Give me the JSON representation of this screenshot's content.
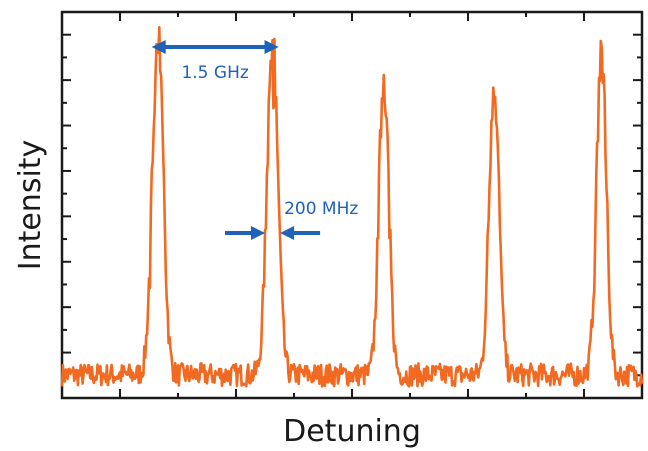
{
  "colors": {
    "trace": "#f26a21",
    "annotation": "#1e63b8",
    "axis": "#1a1a1a"
  },
  "chart_data": {
    "type": "line",
    "title": "",
    "xlabel": "Detuning",
    "ylabel": "Intensity",
    "xlim": [
      0,
      10
    ],
    "ylim": [
      0,
      1
    ],
    "grid": false,
    "legend": "none",
    "series": [
      {
        "peaks": [
          {
            "center": 1.65,
            "height": 0.94,
            "fwhm": 0.22
          },
          {
            "center": 3.63,
            "height": 0.94,
            "fwhm": 0.22
          },
          {
            "center": 5.55,
            "height": 0.84,
            "fwhm": 0.2
          },
          {
            "center": 7.45,
            "height": 0.83,
            "fwhm": 0.2
          },
          {
            "center": 9.3,
            "height": 0.89,
            "fwhm": 0.2
          }
        ],
        "baseline": 0.06,
        "noise": 0.03
      }
    ],
    "annotations": [
      {
        "text": "1.5 GHz",
        "type": "double-arrow",
        "from": 1.65,
        "to": 3.63,
        "y": 1.0
      },
      {
        "text": "200 MHz",
        "type": "width-arrows",
        "left": 3.5,
        "right": 3.76,
        "y": 0.5
      }
    ]
  }
}
